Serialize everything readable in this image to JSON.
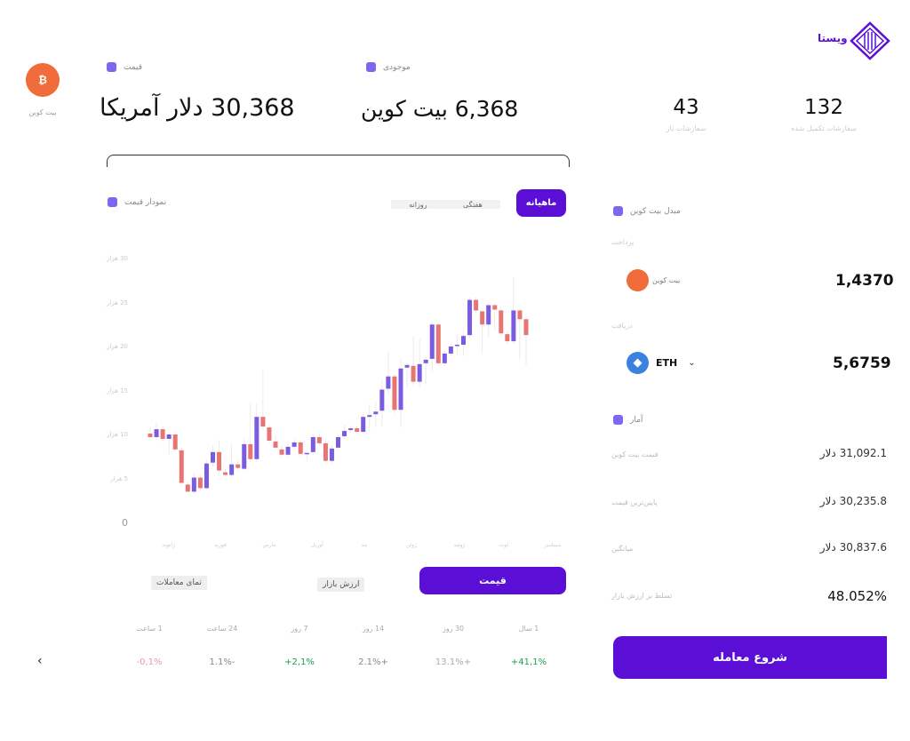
{
  "brand": {
    "name": "ویستا",
    "color": "#5b0fd6"
  },
  "coin": {
    "name": "بیت کوین",
    "icon": "bitcoin-icon",
    "symbol": "₿",
    "color": "#f26b3a"
  },
  "header": {
    "price_label": "قیمت",
    "price_value": "30,368 دلار آمریکا",
    "balance_label": "موجودی",
    "balance_value": "6,368 بیت کوین",
    "stats": [
      {
        "value": "132",
        "label": "سفارشات تکمیل شده"
      },
      {
        "value": "43",
        "label": "سفارشات باز"
      }
    ]
  },
  "chart_panel": {
    "title": "نمودار قیمت",
    "ranges": [
      "ماهیانه",
      "هفتگی",
      "روزانه"
    ],
    "active_range": "ماهیانه"
  },
  "chart_data": {
    "type": "candlestick",
    "ylim": [
      0,
      30
    ],
    "y_ticks": [
      "0",
      "5 هزار",
      "10 هزار",
      "15 هزار",
      "20 هزار",
      "25 هزار",
      "30 هزار"
    ],
    "x_ticks": [
      "ژانویه",
      "فوریه",
      "مارس",
      "آوریل",
      "مه",
      "ژوئن",
      "ژوئیه",
      "اوت",
      "سپتامبر"
    ],
    "colors": {
      "up": "#7b5ce0",
      "down": "#e87474"
    },
    "candles_ohlc": [
      [
        10.2,
        10.9,
        9.6,
        9.8
      ],
      [
        9.8,
        11.5,
        9.5,
        10.7
      ],
      [
        10.7,
        11.0,
        9.3,
        9.6
      ],
      [
        9.6,
        10.3,
        7.8,
        10.1
      ],
      [
        10.1,
        10.3,
        8.2,
        8.4
      ],
      [
        8.3,
        8.6,
        4.4,
        4.6
      ],
      [
        4.4,
        4.7,
        3.4,
        3.6
      ],
      [
        3.6,
        5.7,
        3.4,
        5.2
      ],
      [
        5.2,
        5.5,
        3.8,
        4.0
      ],
      [
        4.0,
        7.2,
        3.8,
        6.8
      ],
      [
        6.9,
        8.8,
        6.5,
        8.1
      ],
      [
        8.1,
        9.5,
        5.7,
        6.0
      ],
      [
        5.8,
        6.3,
        5.2,
        5.5
      ],
      [
        5.5,
        9.1,
        5.2,
        6.7
      ],
      [
        6.7,
        7.2,
        6.0,
        6.3
      ],
      [
        6.2,
        9.6,
        6.0,
        9.0
      ],
      [
        9.0,
        13.6,
        7.0,
        7.3
      ],
      [
        7.3,
        13.6,
        7.0,
        12.1
      ],
      [
        12.1,
        17.4,
        10.6,
        11.0
      ],
      [
        10.9,
        11.2,
        9.1,
        9.4
      ],
      [
        9.3,
        10.0,
        8.3,
        8.6
      ],
      [
        8.4,
        8.8,
        7.6,
        7.8
      ],
      [
        7.8,
        9.3,
        7.5,
        8.7
      ],
      [
        8.7,
        9.6,
        8.3,
        9.2
      ],
      [
        9.2,
        9.5,
        7.6,
        7.9
      ],
      [
        7.9,
        8.3,
        7.1,
        8.0
      ],
      [
        8.1,
        10.1,
        7.8,
        9.8
      ],
      [
        9.8,
        10.3,
        8.9,
        9.1
      ],
      [
        9.1,
        9.4,
        6.9,
        7.1
      ],
      [
        7.1,
        8.9,
        6.8,
        8.5
      ],
      [
        8.6,
        10.1,
        8.3,
        9.8
      ],
      [
        9.9,
        11.2,
        9.6,
        10.5
      ],
      [
        10.6,
        11.1,
        10.3,
        10.8
      ],
      [
        10.8,
        11.1,
        10.1,
        10.4
      ],
      [
        10.4,
        12.6,
        10.1,
        12.1
      ],
      [
        12.1,
        13.5,
        10.5,
        12.3
      ],
      [
        12.4,
        13.9,
        11.0,
        12.7
      ],
      [
        12.8,
        16.4,
        11.0,
        15.2
      ],
      [
        15.3,
        19.6,
        14.7,
        16.7
      ],
      [
        16.7,
        17.0,
        12.5,
        12.9
      ],
      [
        12.9,
        18.8,
        10.9,
        17.6
      ],
      [
        17.7,
        18.3,
        15.5,
        18.0
      ],
      [
        17.9,
        21.2,
        15.8,
        16.1
      ],
      [
        16.1,
        21.0,
        15.4,
        18.1
      ],
      [
        18.2,
        18.9,
        15.8,
        18.6
      ],
      [
        18.7,
        22.9,
        17.2,
        22.6
      ],
      [
        22.6,
        22.9,
        17.9,
        18.2
      ],
      [
        18.2,
        19.6,
        17.9,
        19.3
      ],
      [
        19.3,
        20.4,
        19.0,
        20.1
      ],
      [
        20.2,
        21.5,
        19.2,
        20.3
      ],
      [
        20.3,
        21.6,
        19.0,
        21.3
      ],
      [
        21.4,
        25.7,
        21.1,
        25.4
      ],
      [
        25.4,
        25.7,
        23.9,
        24.2
      ],
      [
        24.1,
        24.4,
        19.4,
        22.6
      ],
      [
        22.6,
        25.1,
        21.2,
        24.8
      ],
      [
        24.8,
        25.1,
        22.0,
        24.3
      ],
      [
        24.2,
        24.5,
        21.3,
        21.6
      ],
      [
        21.5,
        21.8,
        20.4,
        20.7
      ],
      [
        20.7,
        28.0,
        20.4,
        24.2
      ],
      [
        24.2,
        24.5,
        18.6,
        23.2
      ],
      [
        23.2,
        23.5,
        18.0,
        21.4
      ]
    ]
  },
  "chart_tabs": {
    "active": "قیمت",
    "items": [
      "ارزش بازار",
      "تمای معاملات"
    ]
  },
  "performance": {
    "labels": [
      "1 سال",
      "30 روز",
      "14 روز",
      "7 روز",
      "24 ساعت",
      "1 ساعت"
    ],
    "values": [
      "+41,1%",
      "13.1%+",
      "2.1%+",
      "+2,1%",
      "1.1%-",
      "-0,1%"
    ],
    "colors": [
      "#1a9e55",
      "#aaa",
      "#888",
      "#1a9e55",
      "#888",
      "#e79aa6"
    ]
  },
  "converter": {
    "title": "مبدل بیت کوین",
    "pay_label": "پرداخت",
    "pay_coin": "بیت کوین",
    "pay_amount": "1,4370",
    "receive_label": "دریافت",
    "receive_coin": "ETH",
    "receive_amount": "5,6759"
  },
  "stats": {
    "title": "آمار",
    "rows": [
      {
        "label": "قیمت بیت کوین",
        "value": "31,092.1 دلار"
      },
      {
        "label": "پایین‌ترین قیمت",
        "value": "30,235.8 دلار"
      },
      {
        "label": "میانگین",
        "value": "30,837.6 دلار"
      },
      {
        "label": "تسلط بر ارزش بازار",
        "value": "48.052%"
      }
    ]
  },
  "cta": {
    "label": "شروع معامله"
  },
  "nav": {
    "back_icon": "chevron-left-icon"
  }
}
